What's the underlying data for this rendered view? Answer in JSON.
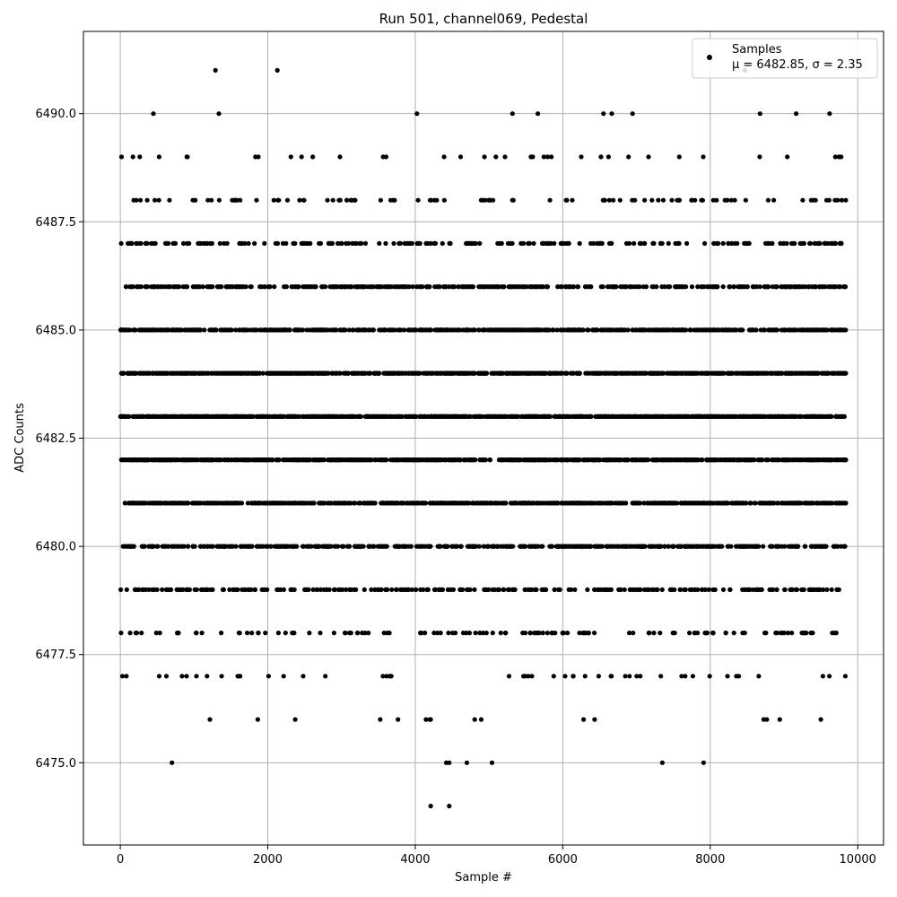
{
  "chart_data": {
    "type": "scatter",
    "title": "Run 501, channel069, Pedestal",
    "xlabel": "Sample #",
    "ylabel": "ADC Counts",
    "xlim": [
      -500,
      10350
    ],
    "ylim": [
      6473.1,
      6491.9
    ],
    "x_ticks": [
      0,
      2000,
      4000,
      6000,
      8000,
      10000
    ],
    "x_tick_labels": [
      "0",
      "2000",
      "4000",
      "6000",
      "8000",
      "10000"
    ],
    "y_ticks": [
      6475.0,
      6477.5,
      6480.0,
      6482.5,
      6485.0,
      6487.5,
      6490.0
    ],
    "y_tick_labels": [
      "6475.0",
      "6477.5",
      "6480.0",
      "6482.5",
      "6485.0",
      "6487.5",
      "6490.0"
    ],
    "grid": true,
    "legend_position": "top-right",
    "series_color": "#000000",
    "series": [
      {
        "name": "Samples",
        "stats_label": "μ = 6482.85, σ = 2.35",
        "mean": 6482.85,
        "sigma": 2.35,
        "n": 9840,
        "x_range": [
          0,
          9840
        ],
        "levels": [
          6476,
          6477,
          6478,
          6479,
          6480,
          6481,
          6482,
          6483,
          6484,
          6485,
          6486,
          6487,
          6488,
          6489,
          6490
        ],
        "outliers": [
          {
            "x": 700,
            "y": 6475
          },
          {
            "x": 4420,
            "y": 6475
          },
          {
            "x": 4460,
            "y": 6475
          },
          {
            "x": 4700,
            "y": 6475
          },
          {
            "x": 5040,
            "y": 6475
          },
          {
            "x": 7350,
            "y": 6475
          },
          {
            "x": 7910,
            "y": 6475
          },
          {
            "x": 4210,
            "y": 6474
          },
          {
            "x": 4460,
            "y": 6474
          },
          {
            "x": 1290,
            "y": 6491
          },
          {
            "x": 2130,
            "y": 6491
          },
          {
            "x": 8470,
            "y": 6491
          }
        ]
      }
    ]
  }
}
